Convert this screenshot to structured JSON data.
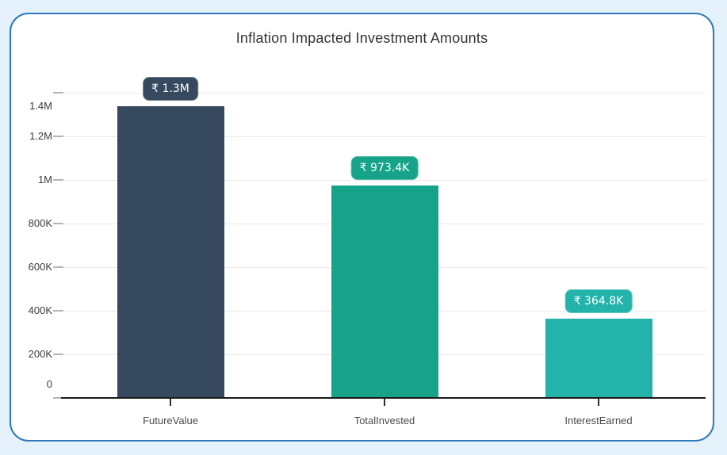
{
  "page": {
    "background_color": "#e5f1fb",
    "card_background": "#ffffff",
    "card_border_color": "#2e79b8"
  },
  "chart": {
    "title": "Inflation Impacted Investment Amounts",
    "title_color": "#333333"
  },
  "chart_data": {
    "type": "bar",
    "title": "Inflation Impacted Investment Amounts",
    "categories": [
      "FutureValue",
      "TotalInvested",
      "InterestEarned"
    ],
    "values": [
      1338200,
      973400,
      364800
    ],
    "data_labels": [
      "₹ 1.3M",
      "₹ 973.4K",
      "₹ 364.8K"
    ],
    "bar_colors": [
      "#36495e",
      "#17a38a",
      "#23b3ab"
    ],
    "currency_symbol": "₹",
    "xlabel": "",
    "ylabel": "",
    "ylim": [
      0,
      1400000
    ],
    "y_tick_values": [
      0,
      200000,
      400000,
      600000,
      800000,
      1000000,
      1200000,
      1400000
    ],
    "y_tick_labels": [
      "0",
      "200K",
      "400K",
      "600K",
      "800K",
      "1M",
      "1.2M",
      "1.4M"
    ],
    "grid": "horizontal",
    "legend": "none",
    "axis_line_color": "#1a1a1a",
    "gridline_color": "#e9e9f0",
    "y_label_color": "#3b3b42",
    "x_label_color": "#4a4a50"
  }
}
